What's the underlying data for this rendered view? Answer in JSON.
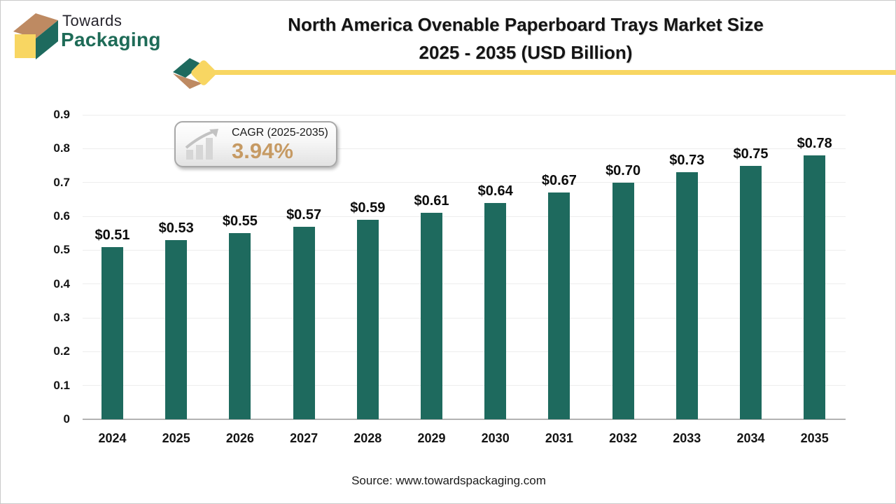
{
  "logo": {
    "brand_top": "Towards",
    "brand_bottom": "Packaging"
  },
  "title": {
    "line1": "North America Ovenable Paperboard Trays Market Size",
    "line2": "2025 - 2035 (USD Billion)"
  },
  "cagr_badge": {
    "label": "CAGR (2025-2035)",
    "value": "3.94%"
  },
  "chart_data": {
    "type": "bar",
    "title": "North America Ovenable Paperboard Trays Market Size 2025 - 2035 (USD Billion)",
    "categories": [
      "2024",
      "2025",
      "2026",
      "2027",
      "2028",
      "2029",
      "2030",
      "2031",
      "2032",
      "2033",
      "2034",
      "2035"
    ],
    "values": [
      0.51,
      0.53,
      0.55,
      0.57,
      0.59,
      0.61,
      0.64,
      0.67,
      0.7,
      0.73,
      0.75,
      0.78
    ],
    "bar_labels": [
      "$0.51",
      "$0.53",
      "$0.55",
      "$0.57",
      "$0.59",
      "$0.61",
      "$0.64",
      "$0.67",
      "$0.70",
      "$0.73",
      "$0.75",
      "$0.78"
    ],
    "xlabel": "",
    "ylabel": "",
    "ylim": [
      0,
      0.9
    ],
    "yticks": [
      0,
      0.1,
      0.2,
      0.3,
      0.4,
      0.5,
      0.6,
      0.7,
      0.8,
      0.9
    ],
    "ytick_labels": [
      "0",
      "0.1",
      "0.2",
      "0.3",
      "0.4",
      "0.5",
      "0.6",
      "0.7",
      "0.8",
      "0.9"
    ],
    "grid": true,
    "legend": false,
    "bar_color": "#1e6a5e"
  },
  "source": {
    "text": "Source: www.towardspackaging.com"
  },
  "colors": {
    "bar_teal": "#1e6a5e",
    "brand_green": "#1e6b57",
    "accent_yellow": "#f8d662",
    "cube_tan": "#be8a62",
    "cagr_value_tan": "#c69a63",
    "gridline": "#ededed",
    "axis_line": "#b3b3b3",
    "text_dark": "#141414"
  }
}
